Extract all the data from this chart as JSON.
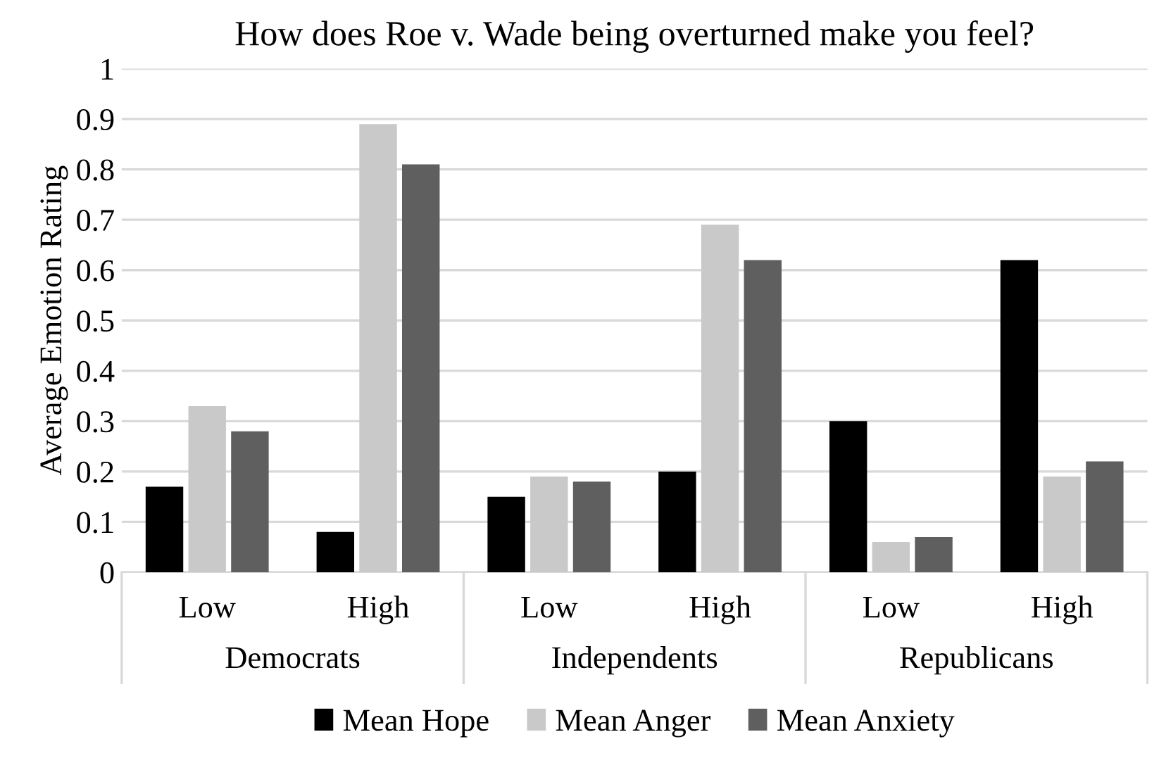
{
  "chart_data": {
    "type": "bar",
    "title": "How does Roe v. Wade being overturned make you feel?",
    "ylabel": "Average Emotion Rating",
    "categories": [
      "Low",
      "High",
      "Low",
      "High",
      "Low",
      "High"
    ],
    "annotations": [
      "Democrats",
      "Independents",
      "Republicans"
    ],
    "series": [
      {
        "name": "Mean Hope",
        "color": "#000000",
        "values": [
          0.17,
          0.08,
          0.15,
          0.2,
          0.3,
          0.62
        ]
      },
      {
        "name": "Mean Anger",
        "color": "#c9c9c9",
        "values": [
          0.33,
          0.89,
          0.19,
          0.69,
          0.06,
          0.19
        ]
      },
      {
        "name": "Mean Anxiety",
        "color": "#5f5f5f",
        "values": [
          0.28,
          0.81,
          0.18,
          0.62,
          0.07,
          0.22
        ]
      }
    ],
    "ylim": [
      0,
      1
    ],
    "yticks": [
      0,
      0.1,
      0.2,
      0.3,
      0.4,
      0.5,
      0.6,
      0.7,
      0.8,
      0.9,
      1
    ],
    "grid": "y",
    "legend": "bottom"
  }
}
